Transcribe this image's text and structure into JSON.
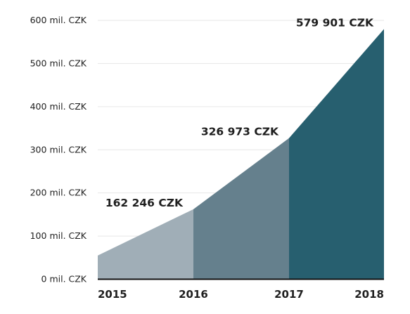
{
  "chart_data": {
    "type": "area",
    "x": [
      "2015",
      "2016",
      "2017",
      "2018"
    ],
    "values": [
      55,
      162.246,
      326.973,
      579.901
    ],
    "data_labels": [
      {
        "year": "2016",
        "text": "162 246 CZK"
      },
      {
        "year": "2017",
        "text": "326 973 CZK"
      },
      {
        "year": "2018",
        "text": "579 901 CZK"
      }
    ],
    "yticks": [
      {
        "value": 0,
        "label": "0 mil. CZK"
      },
      {
        "value": 100,
        "label": "100 mil. CZK"
      },
      {
        "value": 200,
        "label": "200 mil. CZK"
      },
      {
        "value": 300,
        "label": "300 mil. CZK"
      },
      {
        "value": 400,
        "label": "400 mil. CZK"
      },
      {
        "value": 500,
        "label": "500 mil. CZK"
      },
      {
        "value": 600,
        "label": "600 mil. CZK"
      }
    ],
    "ylim": [
      0,
      600
    ],
    "grid": true,
    "segment_colors": [
      "#a0aeb7",
      "#65808d",
      "#275f6f"
    ],
    "gridline_color": "#e6e6e6",
    "axis_color": "#111111",
    "title": "",
    "xlabel": "",
    "ylabel": ""
  }
}
